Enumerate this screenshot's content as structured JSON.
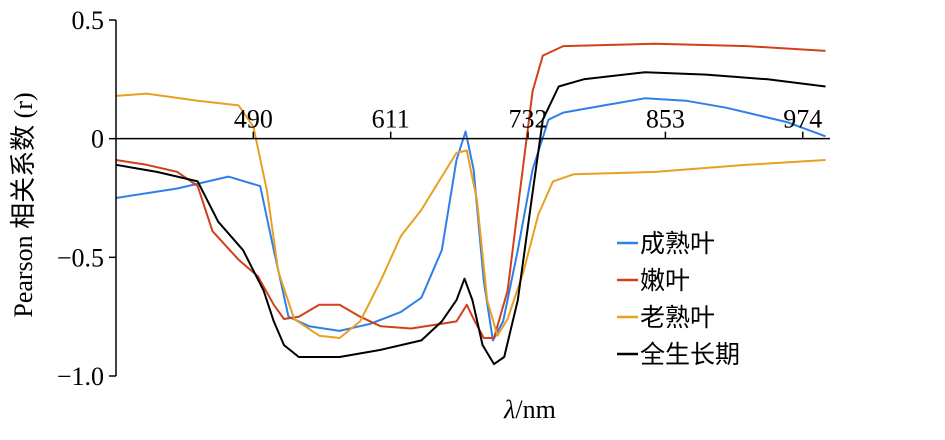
{
  "chart_data": {
    "type": "line",
    "xlabel": "λ/nm",
    "ylabel": "Pearson 相关系数 (r)",
    "xlim": [
      369,
      998
    ],
    "ylim": [
      -1.0,
      0.5
    ],
    "x_ticks": [
      490,
      611,
      732,
      853,
      974
    ],
    "y_ticks": [
      {
        "value": 0.5,
        "label": "0.5"
      },
      {
        "value": 0,
        "label": "0"
      },
      {
        "value": -0.5,
        "label": "−0.5"
      },
      {
        "value": -1.0,
        "label": "−1.0"
      }
    ],
    "grid": false,
    "legend_position": "bottom-right",
    "series": [
      {
        "name": "成熟叶",
        "color": "#2f7fe8",
        "x": [
          369,
          423,
          468,
          496,
          508,
          521,
          539,
          566,
          593,
          620,
          638,
          656,
          669,
          677,
          684,
          693,
          701,
          710,
          723,
          736,
          750,
          763,
          799,
          835,
          871,
          907,
          960,
          994
        ],
        "y": [
          -0.25,
          -0.21,
          -0.16,
          -0.2,
          -0.47,
          -0.75,
          -0.79,
          -0.81,
          -0.78,
          -0.73,
          -0.67,
          -0.47,
          -0.09,
          0.03,
          -0.13,
          -0.6,
          -0.85,
          -0.77,
          -0.47,
          -0.13,
          0.08,
          0.11,
          0.14,
          0.17,
          0.16,
          0.13,
          0.07,
          0.01
        ]
      },
      {
        "name": "嫩叶",
        "color": "#d2401a",
        "x": [
          369,
          396,
          423,
          441,
          454,
          477,
          494,
          508,
          517,
          530,
          548,
          566,
          584,
          602,
          629,
          656,
          669,
          678,
          684,
          693,
          702,
          714,
          726,
          736,
          745,
          763,
          844,
          925,
          994
        ],
        "y": [
          -0.09,
          -0.11,
          -0.14,
          -0.2,
          -0.39,
          -0.51,
          -0.58,
          -0.7,
          -0.76,
          -0.75,
          -0.7,
          -0.7,
          -0.75,
          -0.79,
          -0.8,
          -0.78,
          -0.77,
          -0.7,
          -0.76,
          -0.84,
          -0.84,
          -0.64,
          -0.18,
          0.2,
          0.35,
          0.39,
          0.4,
          0.39,
          0.37
        ]
      },
      {
        "name": "老熟叶",
        "color": "#e8a020",
        "x": [
          369,
          396,
          441,
          477,
          490,
          502,
          512,
          526,
          548,
          566,
          584,
          602,
          620,
          638,
          656,
          669,
          678,
          687,
          696,
          705,
          714,
          728,
          741,
          754,
          772,
          844,
          925,
          994
        ],
        "y": [
          0.18,
          0.19,
          0.16,
          0.14,
          0.05,
          -0.22,
          -0.56,
          -0.76,
          -0.83,
          -0.84,
          -0.77,
          -0.6,
          -0.41,
          -0.3,
          -0.16,
          -0.06,
          -0.05,
          -0.26,
          -0.68,
          -0.83,
          -0.76,
          -0.56,
          -0.32,
          -0.18,
          -0.15,
          -0.14,
          -0.11,
          -0.09
        ]
      },
      {
        "name": "全生长期",
        "color": "#000000",
        "x": [
          369,
          405,
          441,
          459,
          481,
          499,
          508,
          517,
          530,
          566,
          602,
          638,
          656,
          669,
          676,
          683,
          692,
          702,
          711,
          723,
          735,
          745,
          759,
          781,
          835,
          889,
          943,
          994
        ],
        "y": [
          -0.11,
          -0.14,
          -0.18,
          -0.35,
          -0.47,
          -0.64,
          -0.77,
          -0.87,
          -0.92,
          -0.92,
          -0.89,
          -0.85,
          -0.77,
          -0.68,
          -0.59,
          -0.68,
          -0.87,
          -0.95,
          -0.92,
          -0.68,
          -0.26,
          0.08,
          0.22,
          0.25,
          0.28,
          0.27,
          0.25,
          0.22
        ]
      }
    ]
  }
}
